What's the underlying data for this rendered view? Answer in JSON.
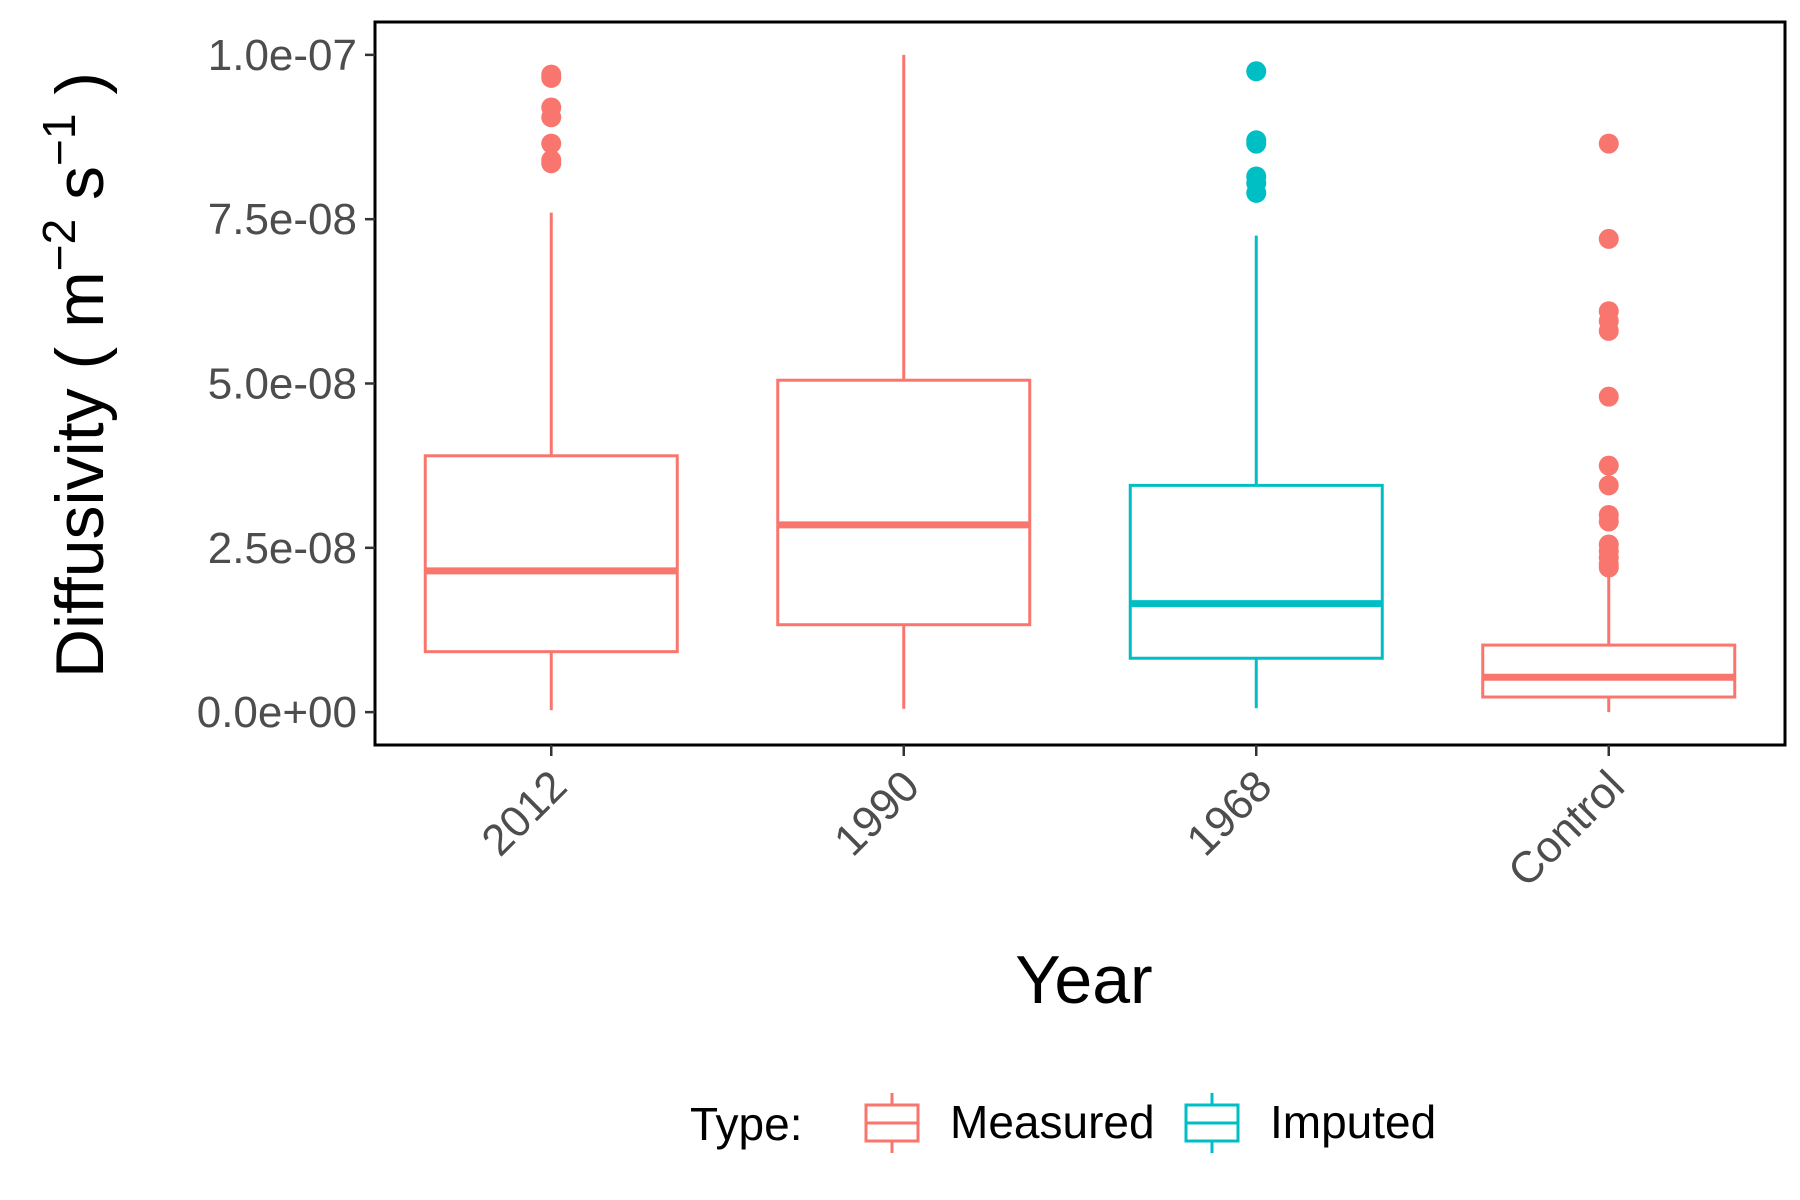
{
  "chart_data": {
    "type": "box",
    "xlabel": "Year",
    "ylabel": "Diffusivity ( m",
    "ylabel_sup1": "−2",
    "ylabel_mid": " s",
    "ylabel_sup2": "−1",
    "ylabel_end": " )",
    "ylim": [
      -5e-09,
      1.05e-07
    ],
    "yticks": [
      0,
      2.5e-08,
      5e-08,
      7.5e-08,
      1e-07
    ],
    "ytick_labels": [
      "0.0e+00",
      "2.5e-08",
      "5.0e-08",
      "7.5e-08",
      "1.0e-07"
    ],
    "categories": [
      "2012",
      "1990",
      "1968",
      "Control"
    ],
    "legend": {
      "title": "Type:",
      "position": "bottom",
      "entries": [
        {
          "name": "Measured",
          "color": "#F8766D"
        },
        {
          "name": "Imputed",
          "color": "#00BFC4"
        }
      ]
    },
    "boxes": [
      {
        "category": "2012",
        "type": "Measured",
        "min": 3e-10,
        "q1": 9.2e-09,
        "median": 2.15e-08,
        "q3": 3.9e-08,
        "max": 7.6e-08,
        "outliers": [
          9.7e-08,
          9.65e-08,
          9.2e-08,
          9.05e-08,
          8.65e-08,
          8.4e-08,
          8.35e-08
        ]
      },
      {
        "category": "1990",
        "type": "Measured",
        "min": 5e-10,
        "q1": 1.33e-08,
        "median": 2.85e-08,
        "q3": 5.05e-08,
        "max": 1e-07,
        "outliers": []
      },
      {
        "category": "1968",
        "type": "Imputed",
        "min": 6e-10,
        "q1": 8.2e-09,
        "median": 1.65e-08,
        "q3": 3.45e-08,
        "max": 7.25e-08,
        "outliers": [
          9.75e-08,
          8.7e-08,
          8.65e-08,
          8.15e-08,
          8.05e-08,
          7.9e-08
        ]
      },
      {
        "category": "Control",
        "type": "Measured",
        "min": 0,
        "q1": 2.3e-09,
        "median": 5.3e-09,
        "q3": 1.02e-08,
        "max": 2.15e-08,
        "outliers": [
          8.65e-08,
          7.2e-08,
          6.1e-08,
          5.95e-08,
          5.8e-08,
          4.8e-08,
          3.75e-08,
          3.45e-08,
          3e-08,
          2.9e-08,
          2.55e-08,
          2.45e-08,
          2.35e-08,
          2.25e-08,
          2.2e-08
        ]
      }
    ]
  }
}
